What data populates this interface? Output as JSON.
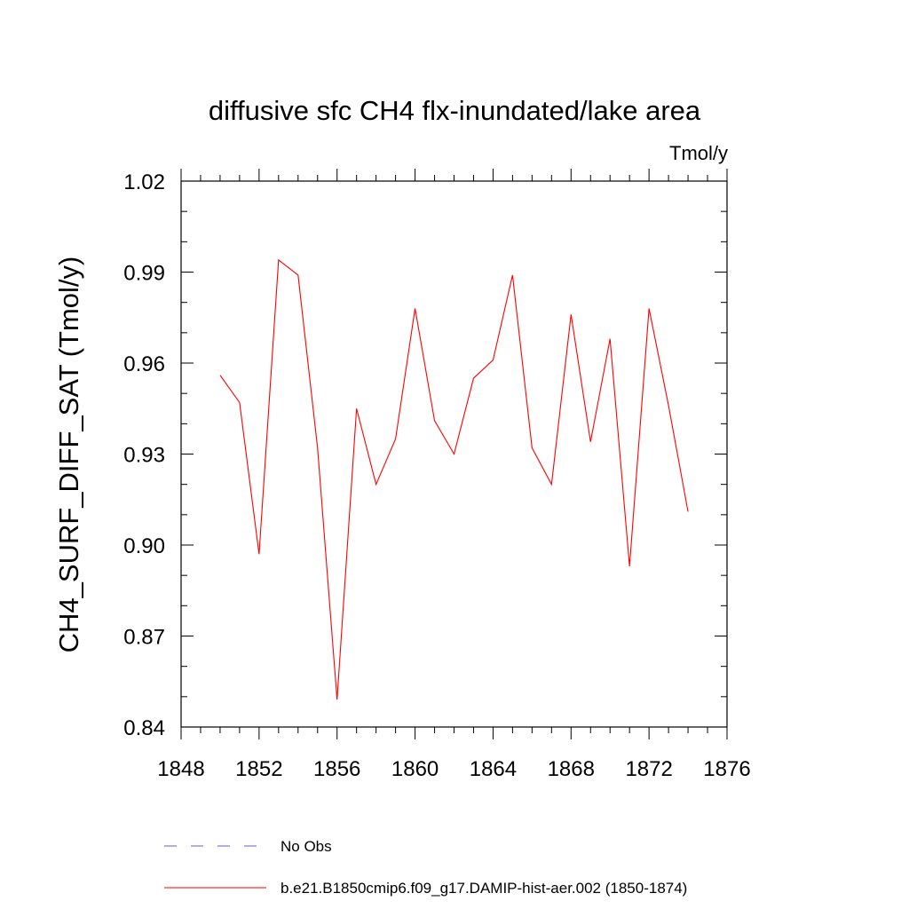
{
  "chart_data": {
    "type": "line",
    "title": "diffusive sfc CH4 flx-inundated/lake area",
    "units": "Tmol/y",
    "ylabel": "CH4_SURF_DIFF_SAT  (Tmol/y)",
    "xlabel": "",
    "xlim": [
      1848,
      1876
    ],
    "ylim": [
      0.84,
      1.02
    ],
    "x_ticks": [
      1848,
      1852,
      1856,
      1860,
      1864,
      1868,
      1872,
      1876
    ],
    "x_tick_labels": [
      "1848",
      "1852",
      "1856",
      "1860",
      "1864",
      "1868",
      "1872",
      "1876"
    ],
    "y_ticks": [
      0.84,
      0.87,
      0.9,
      0.93,
      0.96,
      0.99,
      1.02
    ],
    "y_tick_labels": [
      "0.84",
      "0.87",
      "0.90",
      "0.93",
      "0.96",
      "0.99",
      "1.02"
    ],
    "grid": false,
    "legend_position": "bottom",
    "series": [
      {
        "name": "No Obs",
        "color": "#6a5acd",
        "style": "dashed",
        "x": [],
        "values": []
      },
      {
        "name": "b.e21.B1850cmip6.f09_g17.DAMIP-hist-aer.002 (1850-1874)",
        "color": "#ff0000",
        "style": "solid",
        "x": [
          1850,
          1851,
          1852,
          1853,
          1854,
          1855,
          1856,
          1857,
          1858,
          1859,
          1860,
          1861,
          1862,
          1863,
          1864,
          1865,
          1866,
          1867,
          1868,
          1869,
          1870,
          1871,
          1872,
          1873,
          1874
        ],
        "values": [
          0.956,
          0.947,
          0.897,
          0.994,
          0.989,
          0.932,
          0.849,
          0.945,
          0.92,
          0.935,
          0.978,
          0.941,
          0.93,
          0.955,
          0.961,
          0.989,
          0.932,
          0.92,
          0.976,
          0.934,
          0.968,
          0.893,
          0.978,
          0.946,
          0.911
        ]
      }
    ]
  }
}
